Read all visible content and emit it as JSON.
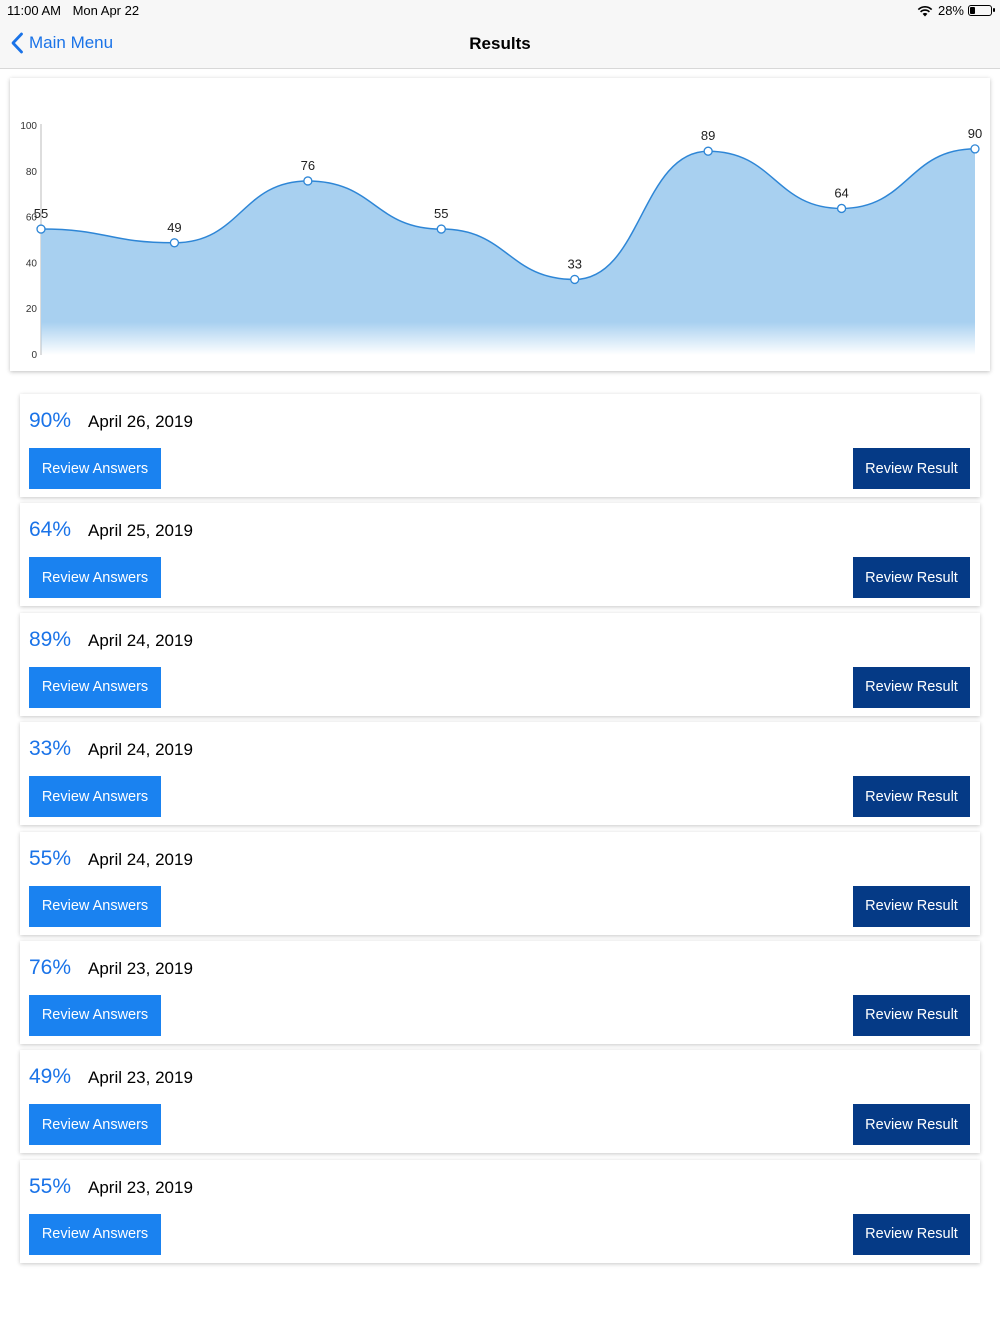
{
  "status_bar": {
    "time": "11:00 AM",
    "date": "Mon Apr 22",
    "battery": "28%",
    "battery_level": 0.28,
    "icons": [
      "wifi-icon",
      "battery-icon"
    ]
  },
  "nav": {
    "back_label": "Main Menu",
    "back_icon": "chevron-left-icon",
    "title": "Results"
  },
  "colors": {
    "accent": "#1a73e8",
    "answers_button": "#1a82f0",
    "result_button": "#053a86",
    "chart_fill": "#a8d0f0",
    "chart_line": "#2e86d6"
  },
  "chart_data": {
    "type": "area",
    "x": [
      1,
      2,
      3,
      4,
      5,
      6,
      7,
      8
    ],
    "values": [
      55,
      49,
      76,
      55,
      33,
      89,
      64,
      90
    ],
    "ylim": [
      0,
      100
    ],
    "yticks": [
      0,
      20,
      40,
      60,
      80,
      100
    ],
    "title": "",
    "xlabel": "",
    "ylabel": "",
    "smooth": true,
    "data_labels": true,
    "grid": false
  },
  "results": [
    {
      "score": "90%",
      "date": "April 26, 2019",
      "answers_label": "Review Answers",
      "result_label": "Review Result"
    },
    {
      "score": "64%",
      "date": "April 25, 2019",
      "answers_label": "Review Answers",
      "result_label": "Review Result"
    },
    {
      "score": "89%",
      "date": "April 24, 2019",
      "answers_label": "Review Answers",
      "result_label": "Review Result"
    },
    {
      "score": "33%",
      "date": "April 24, 2019",
      "answers_label": "Review Answers",
      "result_label": "Review Result"
    },
    {
      "score": "55%",
      "date": "April 24, 2019",
      "answers_label": "Review Answers",
      "result_label": "Review Result"
    },
    {
      "score": "76%",
      "date": "April 23, 2019",
      "answers_label": "Review Answers",
      "result_label": "Review Result"
    },
    {
      "score": "49%",
      "date": "April 23, 2019",
      "answers_label": "Review Answers",
      "result_label": "Review Result"
    },
    {
      "score": "55%",
      "date": "April 23, 2019",
      "answers_label": "Review Answers",
      "result_label": "Review Result"
    }
  ]
}
